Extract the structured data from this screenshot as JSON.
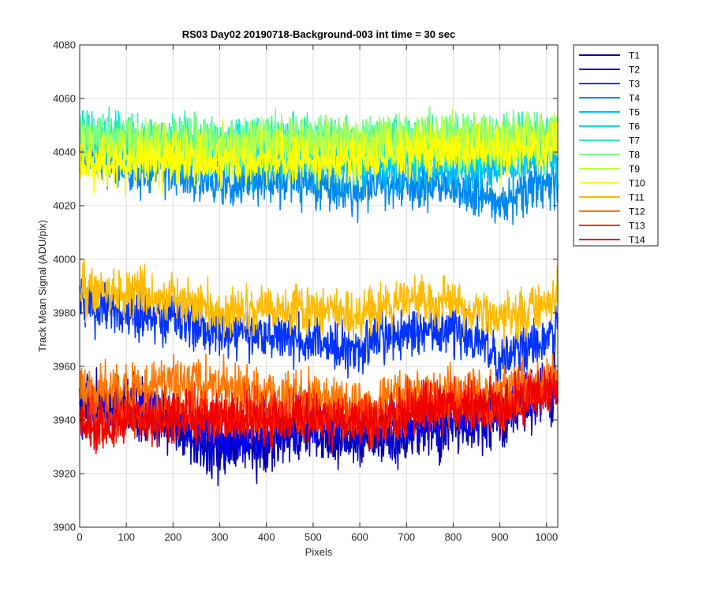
{
  "chart_data": {
    "type": "line",
    "title": "RS03 Day02 20190718-Background-003 int time = 30 sec",
    "xlabel": "Pixels",
    "ylabel": "Track Mean Signal (ADU/pix)",
    "xlim": [
      0,
      1024
    ],
    "ylim": [
      3900,
      4080
    ],
    "xticks": [
      "0",
      "100",
      "200",
      "300",
      "400",
      "500",
      "600",
      "700",
      "800",
      "900",
      "1000"
    ],
    "yticks": [
      "3900",
      "3920",
      "3940",
      "3960",
      "3980",
      "4000",
      "4020",
      "4040",
      "4060",
      "4080"
    ],
    "grid": true,
    "legend_position": "outside-right-top",
    "n_points": 1024,
    "series": [
      {
        "name": "T1",
        "color": "#0000b3",
        "baseline": [
          [
            0,
            3946
          ],
          [
            100,
            3945
          ],
          [
            200,
            3940
          ],
          [
            300,
            3928
          ],
          [
            400,
            3932
          ],
          [
            500,
            3937
          ],
          [
            600,
            3932
          ],
          [
            700,
            3936
          ],
          [
            800,
            3938
          ],
          [
            900,
            3941
          ],
          [
            1024,
            3952
          ]
        ],
        "noise": 6
      },
      {
        "name": "T2",
        "color": "#0000ee",
        "baseline": [
          [
            0,
            3946
          ],
          [
            100,
            3944
          ],
          [
            200,
            3941
          ],
          [
            300,
            3933
          ],
          [
            400,
            3936
          ],
          [
            500,
            3940
          ],
          [
            600,
            3936
          ],
          [
            700,
            3939
          ],
          [
            800,
            3940
          ],
          [
            900,
            3943
          ],
          [
            1024,
            3953
          ]
        ],
        "noise": 5
      },
      {
        "name": "T3",
        "color": "#0033ff",
        "baseline": [
          [
            0,
            3984
          ],
          [
            100,
            3980
          ],
          [
            200,
            3978
          ],
          [
            300,
            3972
          ],
          [
            400,
            3972
          ],
          [
            500,
            3970
          ],
          [
            600,
            3966
          ],
          [
            700,
            3973
          ],
          [
            800,
            3974
          ],
          [
            900,
            3963
          ],
          [
            1024,
            3973
          ]
        ],
        "noise": 5
      },
      {
        "name": "T4",
        "color": "#0088ee",
        "baseline": [
          [
            0,
            4040
          ],
          [
            100,
            4034
          ],
          [
            200,
            4033
          ],
          [
            300,
            4028
          ],
          [
            400,
            4030
          ],
          [
            500,
            4029
          ],
          [
            600,
            4026
          ],
          [
            700,
            4029
          ],
          [
            800,
            4027
          ],
          [
            900,
            4022
          ],
          [
            1024,
            4030
          ]
        ],
        "noise": 5
      },
      {
        "name": "T5",
        "color": "#00bbff",
        "baseline": [
          [
            0,
            4044
          ],
          [
            100,
            4040
          ],
          [
            200,
            4040
          ],
          [
            300,
            4036
          ],
          [
            400,
            4038
          ],
          [
            500,
            4037
          ],
          [
            600,
            4035
          ],
          [
            700,
            4036
          ],
          [
            800,
            4035
          ],
          [
            900,
            4034
          ],
          [
            1024,
            4038
          ]
        ],
        "noise": 5
      },
      {
        "name": "T6",
        "color": "#00e5e5",
        "baseline": [
          [
            0,
            4046
          ],
          [
            100,
            4044
          ],
          [
            200,
            4043
          ],
          [
            300,
            4041
          ],
          [
            400,
            4043
          ],
          [
            500,
            4042
          ],
          [
            600,
            4040
          ],
          [
            700,
            4042
          ],
          [
            800,
            4041
          ],
          [
            900,
            4040
          ],
          [
            1024,
            4044
          ]
        ],
        "noise": 5
      },
      {
        "name": "T7",
        "color": "#33eebb",
        "baseline": [
          [
            0,
            4047
          ],
          [
            100,
            4045
          ],
          [
            200,
            4045
          ],
          [
            300,
            4043
          ],
          [
            400,
            4045
          ],
          [
            500,
            4044
          ],
          [
            600,
            4043
          ],
          [
            700,
            4044
          ],
          [
            800,
            4044
          ],
          [
            900,
            4044
          ],
          [
            1024,
            4046
          ]
        ],
        "noise": 5
      },
      {
        "name": "T8",
        "color": "#77ff88",
        "baseline": [
          [
            0,
            4046
          ],
          [
            100,
            4045
          ],
          [
            200,
            4044
          ],
          [
            300,
            4043
          ],
          [
            400,
            4045
          ],
          [
            500,
            4044
          ],
          [
            600,
            4044
          ],
          [
            700,
            4045
          ],
          [
            800,
            4045
          ],
          [
            900,
            4045
          ],
          [
            1024,
            4047
          ]
        ],
        "noise": 5
      },
      {
        "name": "T9",
        "color": "#bbff44",
        "baseline": [
          [
            0,
            4042
          ],
          [
            100,
            4042
          ],
          [
            200,
            4042
          ],
          [
            300,
            4041
          ],
          [
            400,
            4043
          ],
          [
            500,
            4043
          ],
          [
            600,
            4043
          ],
          [
            700,
            4044
          ],
          [
            800,
            4044
          ],
          [
            900,
            4044
          ],
          [
            1024,
            4047
          ]
        ],
        "noise": 5
      },
      {
        "name": "T10",
        "color": "#ffff00",
        "baseline": [
          [
            0,
            4034
          ],
          [
            100,
            4036
          ],
          [
            200,
            4037
          ],
          [
            300,
            4036
          ],
          [
            400,
            4037
          ],
          [
            500,
            4037
          ],
          [
            600,
            4038
          ],
          [
            700,
            4039
          ],
          [
            800,
            4040
          ],
          [
            900,
            4040
          ],
          [
            1024,
            4043
          ]
        ],
        "noise": 5
      },
      {
        "name": "T11",
        "color": "#ffbb00",
        "baseline": [
          [
            0,
            3988
          ],
          [
            100,
            3988
          ],
          [
            200,
            3986
          ],
          [
            300,
            3981
          ],
          [
            400,
            3981
          ],
          [
            500,
            3982
          ],
          [
            600,
            3979
          ],
          [
            700,
            3985
          ],
          [
            800,
            3984
          ],
          [
            900,
            3977
          ],
          [
            1024,
            3985
          ]
        ],
        "noise": 5
      },
      {
        "name": "T12",
        "color": "#ff7700",
        "baseline": [
          [
            0,
            3951
          ],
          [
            100,
            3952
          ],
          [
            200,
            3954
          ],
          [
            300,
            3952
          ],
          [
            400,
            3950
          ],
          [
            500,
            3949
          ],
          [
            600,
            3945
          ],
          [
            700,
            3949
          ],
          [
            800,
            3951
          ],
          [
            900,
            3950
          ],
          [
            1024,
            3956
          ]
        ],
        "noise": 5
      },
      {
        "name": "T13",
        "color": "#ff3300",
        "baseline": [
          [
            0,
            3941
          ],
          [
            100,
            3942
          ],
          [
            200,
            3944
          ],
          [
            300,
            3943
          ],
          [
            400,
            3942
          ],
          [
            500,
            3942
          ],
          [
            600,
            3940
          ],
          [
            700,
            3944
          ],
          [
            800,
            3946
          ],
          [
            900,
            3946
          ],
          [
            1024,
            3952
          ]
        ],
        "noise": 5
      },
      {
        "name": "T14",
        "color": "#ee0000",
        "baseline": [
          [
            0,
            3938
          ],
          [
            100,
            3939
          ],
          [
            200,
            3941
          ],
          [
            300,
            3941
          ],
          [
            400,
            3940
          ],
          [
            500,
            3940
          ],
          [
            600,
            3939
          ],
          [
            700,
            3943
          ],
          [
            800,
            3945
          ],
          [
            900,
            3945
          ],
          [
            1024,
            3951
          ]
        ],
        "noise": 5
      }
    ]
  }
}
